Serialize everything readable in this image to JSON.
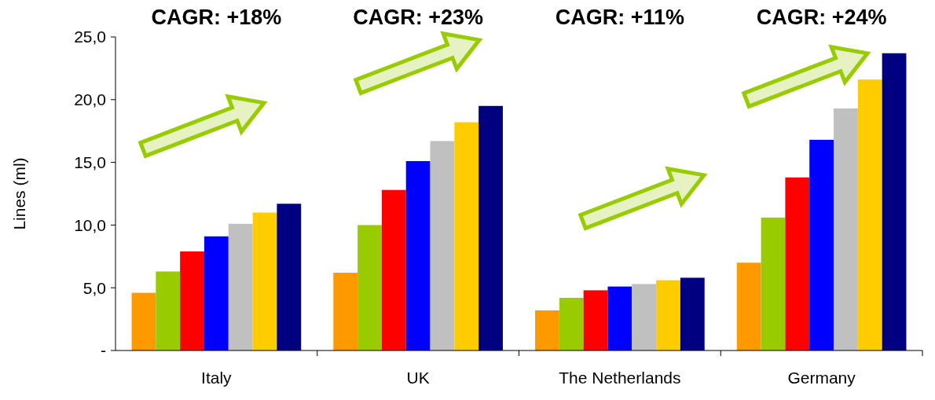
{
  "chart_data": {
    "type": "bar",
    "ylabel": "Lines (ml)",
    "categories": [
      "Italy",
      "UK",
      "The Netherlands",
      "Germany"
    ],
    "series": [
      {
        "color": "#ff9900",
        "values": [
          4.6,
          6.2,
          3.2,
          7.0
        ]
      },
      {
        "color": "#99cc00",
        "values": [
          6.3,
          10.0,
          4.2,
          10.6
        ]
      },
      {
        "color": "#ff0000",
        "values": [
          7.9,
          12.8,
          4.8,
          13.8
        ]
      },
      {
        "color": "#0000ff",
        "values": [
          9.1,
          15.1,
          5.1,
          16.8
        ]
      },
      {
        "color": "#c0c0c0",
        "values": [
          10.1,
          16.7,
          5.3,
          19.3
        ]
      },
      {
        "color": "#ffcc00",
        "values": [
          11.0,
          18.2,
          5.6,
          21.6
        ]
      },
      {
        "color": "#000080",
        "values": [
          11.7,
          19.5,
          5.8,
          23.7
        ]
      }
    ],
    "ylim": [
      0,
      25
    ],
    "yticks": [
      {
        "value": 0,
        "label": "-"
      },
      {
        "value": 5,
        "label": "5,0"
      },
      {
        "value": 10,
        "label": "10,0"
      },
      {
        "value": 15,
        "label": "15,0"
      },
      {
        "value": 20,
        "label": "20,0"
      },
      {
        "value": 25,
        "label": "25,0"
      }
    ],
    "annotations": [
      "CAGR: +18%",
      "CAGR: +23%",
      "CAGR: +11%",
      "CAGR: +24%"
    ]
  }
}
